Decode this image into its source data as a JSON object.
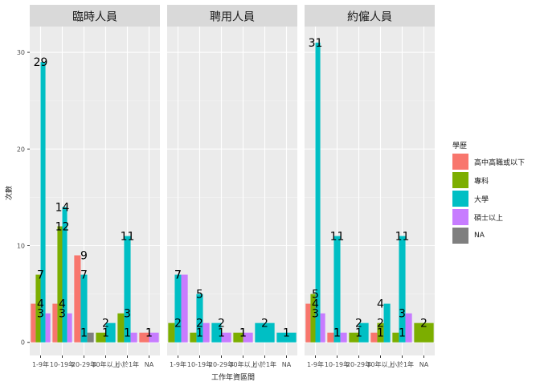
{
  "chart_data": {
    "type": "bar",
    "facets": [
      "臨時人員",
      "聘用人員",
      "約僱人員"
    ],
    "categories": [
      "1-9年",
      "10-19年",
      "20-29年",
      "30年以上",
      "小於1年",
      "NA"
    ],
    "xlabel": "工作年資區間",
    "ylabel": "次數",
    "ylim": [
      0,
      33
    ],
    "yticks": [
      0,
      10,
      20,
      30
    ],
    "legend": {
      "title": "學歷",
      "position": "right"
    },
    "series_colors": {
      "高中高職或以下": "#F8766D",
      "專科": "#7CAE00",
      "大學": "#00BFC4",
      "碩士以上": "#C77CFF",
      "NA": "#7F7F7F"
    },
    "panels": [
      {
        "facet": "臨時人員",
        "groups": [
          {
            "category": "1-9年",
            "bars": [
              {
                "series": "高中高職或以下",
                "value": 4
              },
              {
                "series": "專科",
                "value": 7
              },
              {
                "series": "大學",
                "value": 29
              },
              {
                "series": "碩士以上",
                "value": 3
              }
            ]
          },
          {
            "category": "10-19年",
            "bars": [
              {
                "series": "高中高職或以下",
                "value": 4
              },
              {
                "series": "專科",
                "value": 12
              },
              {
                "series": "大學",
                "value": 14
              },
              {
                "series": "碩士以上",
                "value": 3
              }
            ]
          },
          {
            "category": "20-29年",
            "bars": [
              {
                "series": "高中高職或以下",
                "value": 9
              },
              {
                "series": "大學",
                "value": 7
              },
              {
                "series": "NA",
                "value": 1
              }
            ]
          },
          {
            "category": "30年以上",
            "bars": [
              {
                "series": "專科",
                "value": 1
              },
              {
                "series": "大學",
                "value": 2
              }
            ]
          },
          {
            "category": "小於1年",
            "bars": [
              {
                "series": "專科",
                "value": 3
              },
              {
                "series": "大學",
                "value": 11
              },
              {
                "series": "碩士以上",
                "value": 1
              }
            ]
          },
          {
            "category": "NA",
            "bars": [
              {
                "series": "高中高職或以下",
                "value": 1
              },
              {
                "series": "碩士以上",
                "value": 1
              }
            ]
          }
        ]
      },
      {
        "facet": "聘用人員",
        "groups": [
          {
            "category": "1-9年",
            "bars": [
              {
                "series": "專科",
                "value": 2
              },
              {
                "series": "大學",
                "value": 7
              },
              {
                "series": "碩士以上",
                "value": 7
              }
            ]
          },
          {
            "category": "10-19年",
            "bars": [
              {
                "series": "專科",
                "value": 1
              },
              {
                "series": "大學",
                "value": 5
              },
              {
                "series": "碩士以上",
                "value": 2
              }
            ]
          },
          {
            "category": "20-29年",
            "bars": [
              {
                "series": "大學",
                "value": 2
              },
              {
                "series": "碩士以上",
                "value": 1
              }
            ]
          },
          {
            "category": "30年以上",
            "bars": [
              {
                "series": "專科",
                "value": 1
              },
              {
                "series": "碩士以上",
                "value": 1
              }
            ]
          },
          {
            "category": "小於1年",
            "bars": [
              {
                "series": "大學",
                "value": 2
              }
            ]
          },
          {
            "category": "NA",
            "bars": [
              {
                "series": "大學",
                "value": 1
              }
            ]
          }
        ]
      },
      {
        "facet": "約僱人員",
        "groups": [
          {
            "category": "1-9年",
            "bars": [
              {
                "series": "高中高職或以下",
                "value": 4
              },
              {
                "series": "專科",
                "value": 5
              },
              {
                "series": "大學",
                "value": 31
              },
              {
                "series": "碩士以上",
                "value": 3
              }
            ]
          },
          {
            "category": "10-19年",
            "bars": [
              {
                "series": "高中高職或以下",
                "value": 1
              },
              {
                "series": "大學",
                "value": 11
              },
              {
                "series": "碩士以上",
                "value": 1
              }
            ]
          },
          {
            "category": "20-29年",
            "bars": [
              {
                "series": "專科",
                "value": 1
              },
              {
                "series": "大學",
                "value": 2
              }
            ]
          },
          {
            "category": "30年以上",
            "bars": [
              {
                "series": "高中高職或以下",
                "value": 1
              },
              {
                "series": "專科",
                "value": 2
              },
              {
                "series": "大學",
                "value": 4
              }
            ]
          },
          {
            "category": "小於1年",
            "bars": [
              {
                "series": "專科",
                "value": 1
              },
              {
                "series": "大學",
                "value": 11
              },
              {
                "series": "碩士以上",
                "value": 3
              }
            ]
          },
          {
            "category": "NA",
            "bars": [
              {
                "series": "專科",
                "value": 2
              }
            ]
          }
        ]
      }
    ]
  }
}
